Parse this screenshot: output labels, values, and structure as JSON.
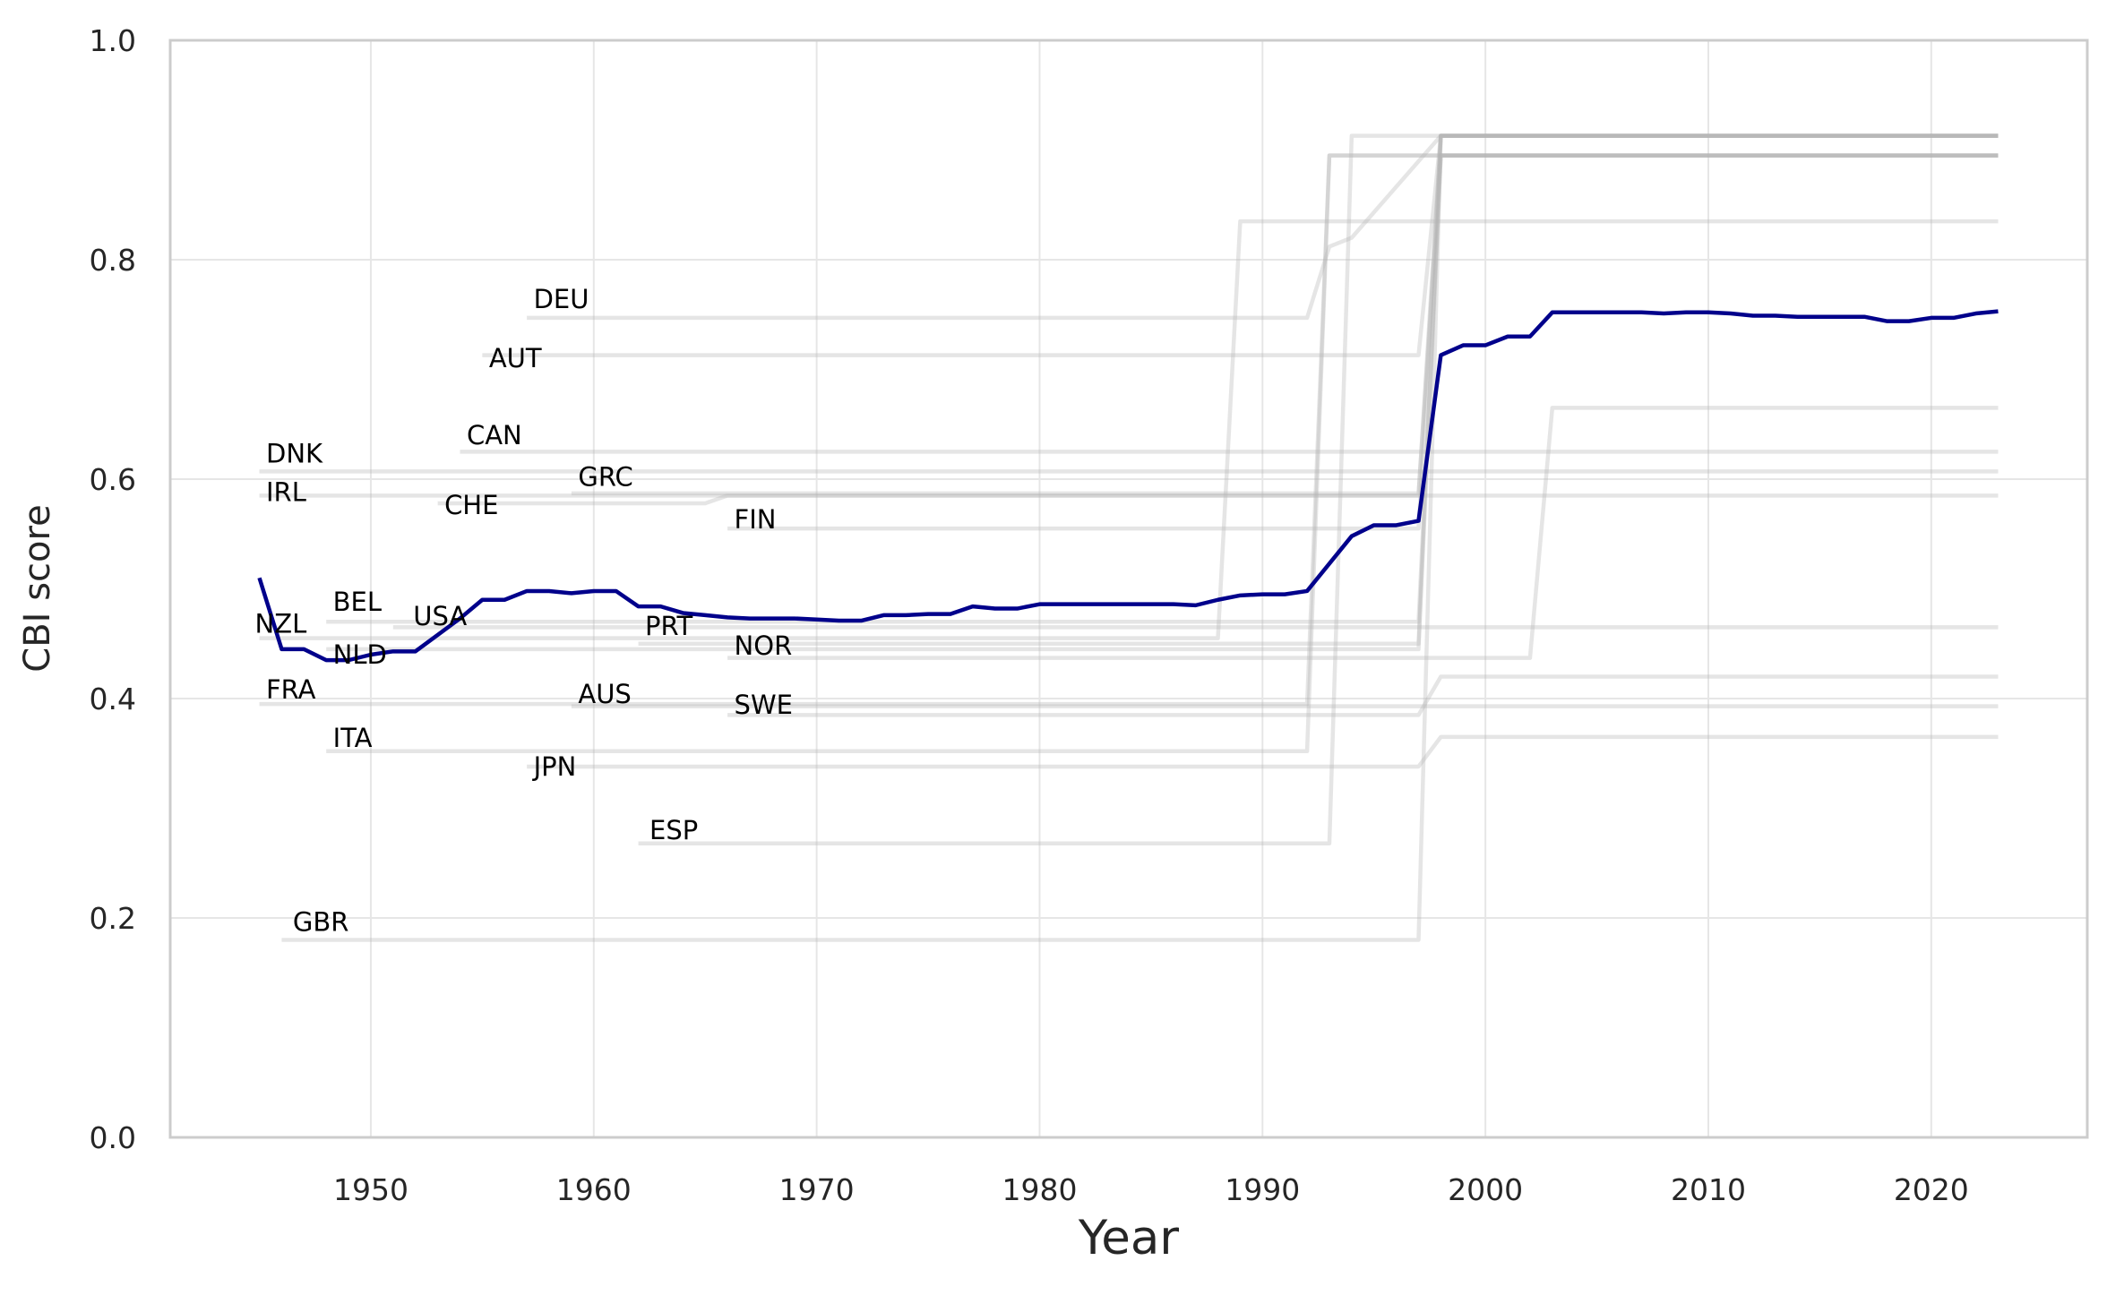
{
  "chart_data": {
    "type": "line",
    "title": "",
    "xlabel": "Year",
    "ylabel": "CBI score",
    "xlim": [
      1941,
      2027
    ],
    "ylim": [
      0,
      1
    ],
    "x_ticks": [
      1950,
      1960,
      1970,
      1980,
      1990,
      2000,
      2010,
      2020
    ],
    "y_ticks": [
      0.0,
      0.2,
      0.4,
      0.6,
      0.8,
      1.0
    ],
    "x_tick_labels": [
      "1950",
      "1960",
      "1970",
      "1980",
      "1990",
      "2000",
      "2010",
      "2020"
    ],
    "y_tick_labels": [
      "0.0",
      "0.2",
      "0.4",
      "0.6",
      "0.8",
      "1.0"
    ],
    "grid": true,
    "colors": {
      "mean": "#00008b",
      "country": "#b4b4b4",
      "grid": "#e6e6e6",
      "frame": "#cccccc"
    },
    "mean": {
      "x": [
        1945,
        1946,
        1947,
        1948,
        1949,
        1950,
        1951,
        1952,
        1953,
        1954,
        1955,
        1956,
        1957,
        1958,
        1959,
        1960,
        1961,
        1962,
        1963,
        1964,
        1965,
        1966,
        1967,
        1968,
        1969,
        1970,
        1971,
        1972,
        1973,
        1974,
        1975,
        1976,
        1977,
        1978,
        1979,
        1980,
        1981,
        1982,
        1983,
        1984,
        1985,
        1986,
        1987,
        1988,
        1989,
        1990,
        1991,
        1992,
        1993,
        1994,
        1995,
        1996,
        1997,
        1998,
        1999,
        2000,
        2001,
        2002,
        2003,
        2004,
        2005,
        2006,
        2007,
        2008,
        2009,
        2010,
        2011,
        2012,
        2013,
        2014,
        2015,
        2016,
        2017,
        2018,
        2019,
        2020,
        2021,
        2022,
        2023
      ],
      "y": [
        0.51,
        0.445,
        0.445,
        0.435,
        0.435,
        0.44,
        0.443,
        0.443,
        0.458,
        0.473,
        0.49,
        0.49,
        0.498,
        0.498,
        0.496,
        0.498,
        0.498,
        0.484,
        0.484,
        0.478,
        0.476,
        0.474,
        0.473,
        0.473,
        0.473,
        0.472,
        0.471,
        0.471,
        0.476,
        0.476,
        0.477,
        0.477,
        0.484,
        0.482,
        0.482,
        0.486,
        0.486,
        0.486,
        0.486,
        0.486,
        0.486,
        0.486,
        0.485,
        0.49,
        0.494,
        0.495,
        0.495,
        0.498,
        0.523,
        0.548,
        0.558,
        0.558,
        0.562,
        0.713,
        0.722,
        0.722,
        0.73,
        0.73,
        0.752,
        0.752,
        0.752,
        0.752,
        0.752,
        0.751,
        0.752,
        0.752,
        0.751,
        0.749,
        0.749,
        0.748,
        0.748,
        0.748,
        0.748,
        0.744,
        0.744,
        0.747,
        0.747,
        0.751,
        0.753
      ]
    },
    "series": [
      {
        "name": "DEU",
        "x": [
          1957,
          1992,
          1993,
          1994,
          1998,
          2023
        ],
        "y": [
          0.747,
          0.747,
          0.812,
          0.82,
          0.913,
          0.913
        ]
      },
      {
        "name": "AUT",
        "x": [
          1955,
          1997,
          1998,
          2023
        ],
        "y": [
          0.713,
          0.713,
          0.913,
          0.913
        ]
      },
      {
        "name": "CAN",
        "x": [
          1954,
          2023
        ],
        "y": [
          0.625,
          0.625
        ]
      },
      {
        "name": "DNK",
        "x": [
          1945,
          2023
        ],
        "y": [
          0.607,
          0.607
        ]
      },
      {
        "name": "IRL",
        "x": [
          1945,
          1997,
          1998,
          2023
        ],
        "y": [
          0.585,
          0.585,
          0.913,
          0.913
        ]
      },
      {
        "name": "CHE",
        "x": [
          1953,
          1965,
          1966,
          2023
        ],
        "y": [
          0.578,
          0.578,
          0.585,
          0.585
        ]
      },
      {
        "name": "GRC",
        "x": [
          1959,
          1997,
          1998,
          2023
        ],
        "y": [
          0.587,
          0.587,
          0.895,
          0.895
        ]
      },
      {
        "name": "FIN",
        "x": [
          1966,
          1997,
          1998,
          2023
        ],
        "y": [
          0.555,
          0.555,
          0.913,
          0.913
        ]
      },
      {
        "name": "BEL",
        "x": [
          1948,
          1997,
          1998,
          2023
        ],
        "y": [
          0.47,
          0.47,
          0.895,
          0.895
        ]
      },
      {
        "name": "USA",
        "x": [
          1951,
          2023
        ],
        "y": [
          0.465,
          0.465
        ]
      },
      {
        "name": "NZL",
        "x": [
          1945,
          1988,
          1989,
          2023
        ],
        "y": [
          0.455,
          0.455,
          0.835,
          0.835
        ]
      },
      {
        "name": "NLD",
        "x": [
          1948,
          1997,
          1998,
          2023
        ],
        "y": [
          0.445,
          0.445,
          0.895,
          0.895
        ]
      },
      {
        "name": "PRT",
        "x": [
          1962,
          1997,
          1998,
          2023
        ],
        "y": [
          0.45,
          0.45,
          0.913,
          0.913
        ]
      },
      {
        "name": "NOR",
        "x": [
          1966,
          2002,
          2003,
          2023
        ],
        "y": [
          0.437,
          0.437,
          0.665,
          0.665
        ]
      },
      {
        "name": "FRA",
        "x": [
          1945,
          1992,
          1993,
          2023
        ],
        "y": [
          0.395,
          0.395,
          0.895,
          0.895
        ]
      },
      {
        "name": "AUS",
        "x": [
          1959,
          2023
        ],
        "y": [
          0.393,
          0.393
        ]
      },
      {
        "name": "SWE",
        "x": [
          1966,
          1997,
          1998,
          2023
        ],
        "y": [
          0.385,
          0.385,
          0.42,
          0.42
        ]
      },
      {
        "name": "ITA",
        "x": [
          1948,
          1992,
          1993,
          2023
        ],
        "y": [
          0.352,
          0.352,
          0.895,
          0.895
        ]
      },
      {
        "name": "JPN",
        "x": [
          1957,
          1997,
          1998,
          2023
        ],
        "y": [
          0.338,
          0.338,
          0.365,
          0.365
        ]
      },
      {
        "name": "ESP",
        "x": [
          1962,
          1993,
          1994,
          2023
        ],
        "y": [
          0.268,
          0.268,
          0.913,
          0.913
        ]
      },
      {
        "name": "GBR",
        "x": [
          1946,
          1997,
          1998,
          2023
        ],
        "y": [
          0.18,
          0.18,
          0.913,
          0.913
        ]
      }
    ],
    "labels": [
      {
        "text": "DEU",
        "x": 1957.3,
        "y": 0.756
      },
      {
        "text": "AUT",
        "x": 1955.3,
        "y": 0.702
      },
      {
        "text": "CAN",
        "x": 1954.3,
        "y": 0.632
      },
      {
        "text": "DNK",
        "x": 1945.3,
        "y": 0.615
      },
      {
        "text": "IRL",
        "x": 1945.3,
        "y": 0.58
      },
      {
        "text": "CHE",
        "x": 1953.3,
        "y": 0.568
      },
      {
        "text": "GRC",
        "x": 1959.3,
        "y": 0.594
      },
      {
        "text": "FIN",
        "x": 1966.3,
        "y": 0.555
      },
      {
        "text": "BEL",
        "x": 1948.3,
        "y": 0.48
      },
      {
        "text": "USA",
        "x": 1951.9,
        "y": 0.467
      },
      {
        "text": "NZL",
        "x": 1944.8,
        "y": 0.46
      },
      {
        "text": "NLD",
        "x": 1948.3,
        "y": 0.432
      },
      {
        "text": "PRT",
        "x": 1962.3,
        "y": 0.458
      },
      {
        "text": "NOR",
        "x": 1966.3,
        "y": 0.44
      },
      {
        "text": "FRA",
        "x": 1945.3,
        "y": 0.4
      },
      {
        "text": "AUS",
        "x": 1959.3,
        "y": 0.396
      },
      {
        "text": "SWE",
        "x": 1966.3,
        "y": 0.386
      },
      {
        "text": "ITA",
        "x": 1948.3,
        "y": 0.356
      },
      {
        "text": "JPN",
        "x": 1957.3,
        "y": 0.33
      },
      {
        "text": "ESP",
        "x": 1962.5,
        "y": 0.272
      },
      {
        "text": "GBR",
        "x": 1946.5,
        "y": 0.188
      }
    ]
  }
}
